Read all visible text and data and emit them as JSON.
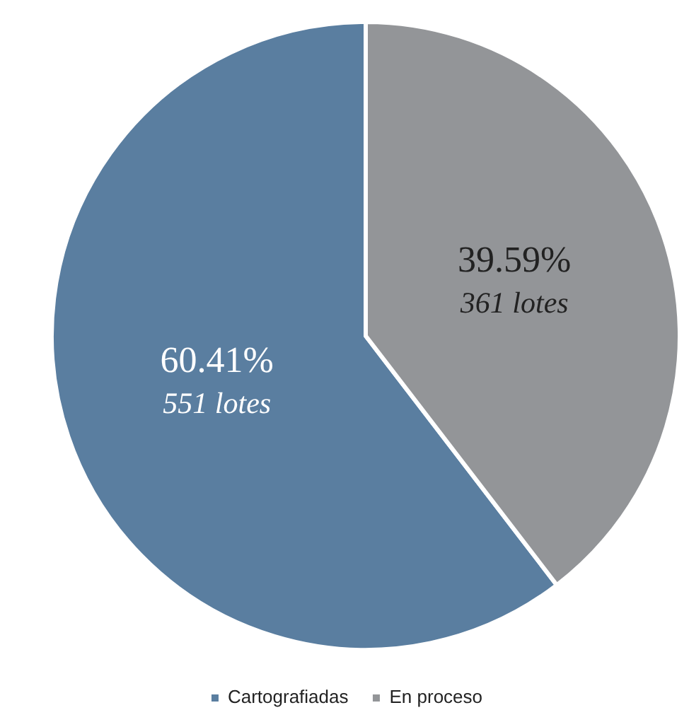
{
  "chart_data": {
    "type": "pie",
    "categories": [
      "Cartografiadas",
      "En proceso"
    ],
    "values": [
      60.41,
      39.59
    ],
    "colors": [
      "#5a7ea0",
      "#939598"
    ],
    "value_labels": [
      "60.41%",
      "39.59%"
    ],
    "annotations": [
      {
        "text": "551 lotes",
        "x": "Cartografiadas"
      },
      {
        "text": "361 lotes",
        "x": "En proceso"
      }
    ],
    "legend": "bottom"
  }
}
